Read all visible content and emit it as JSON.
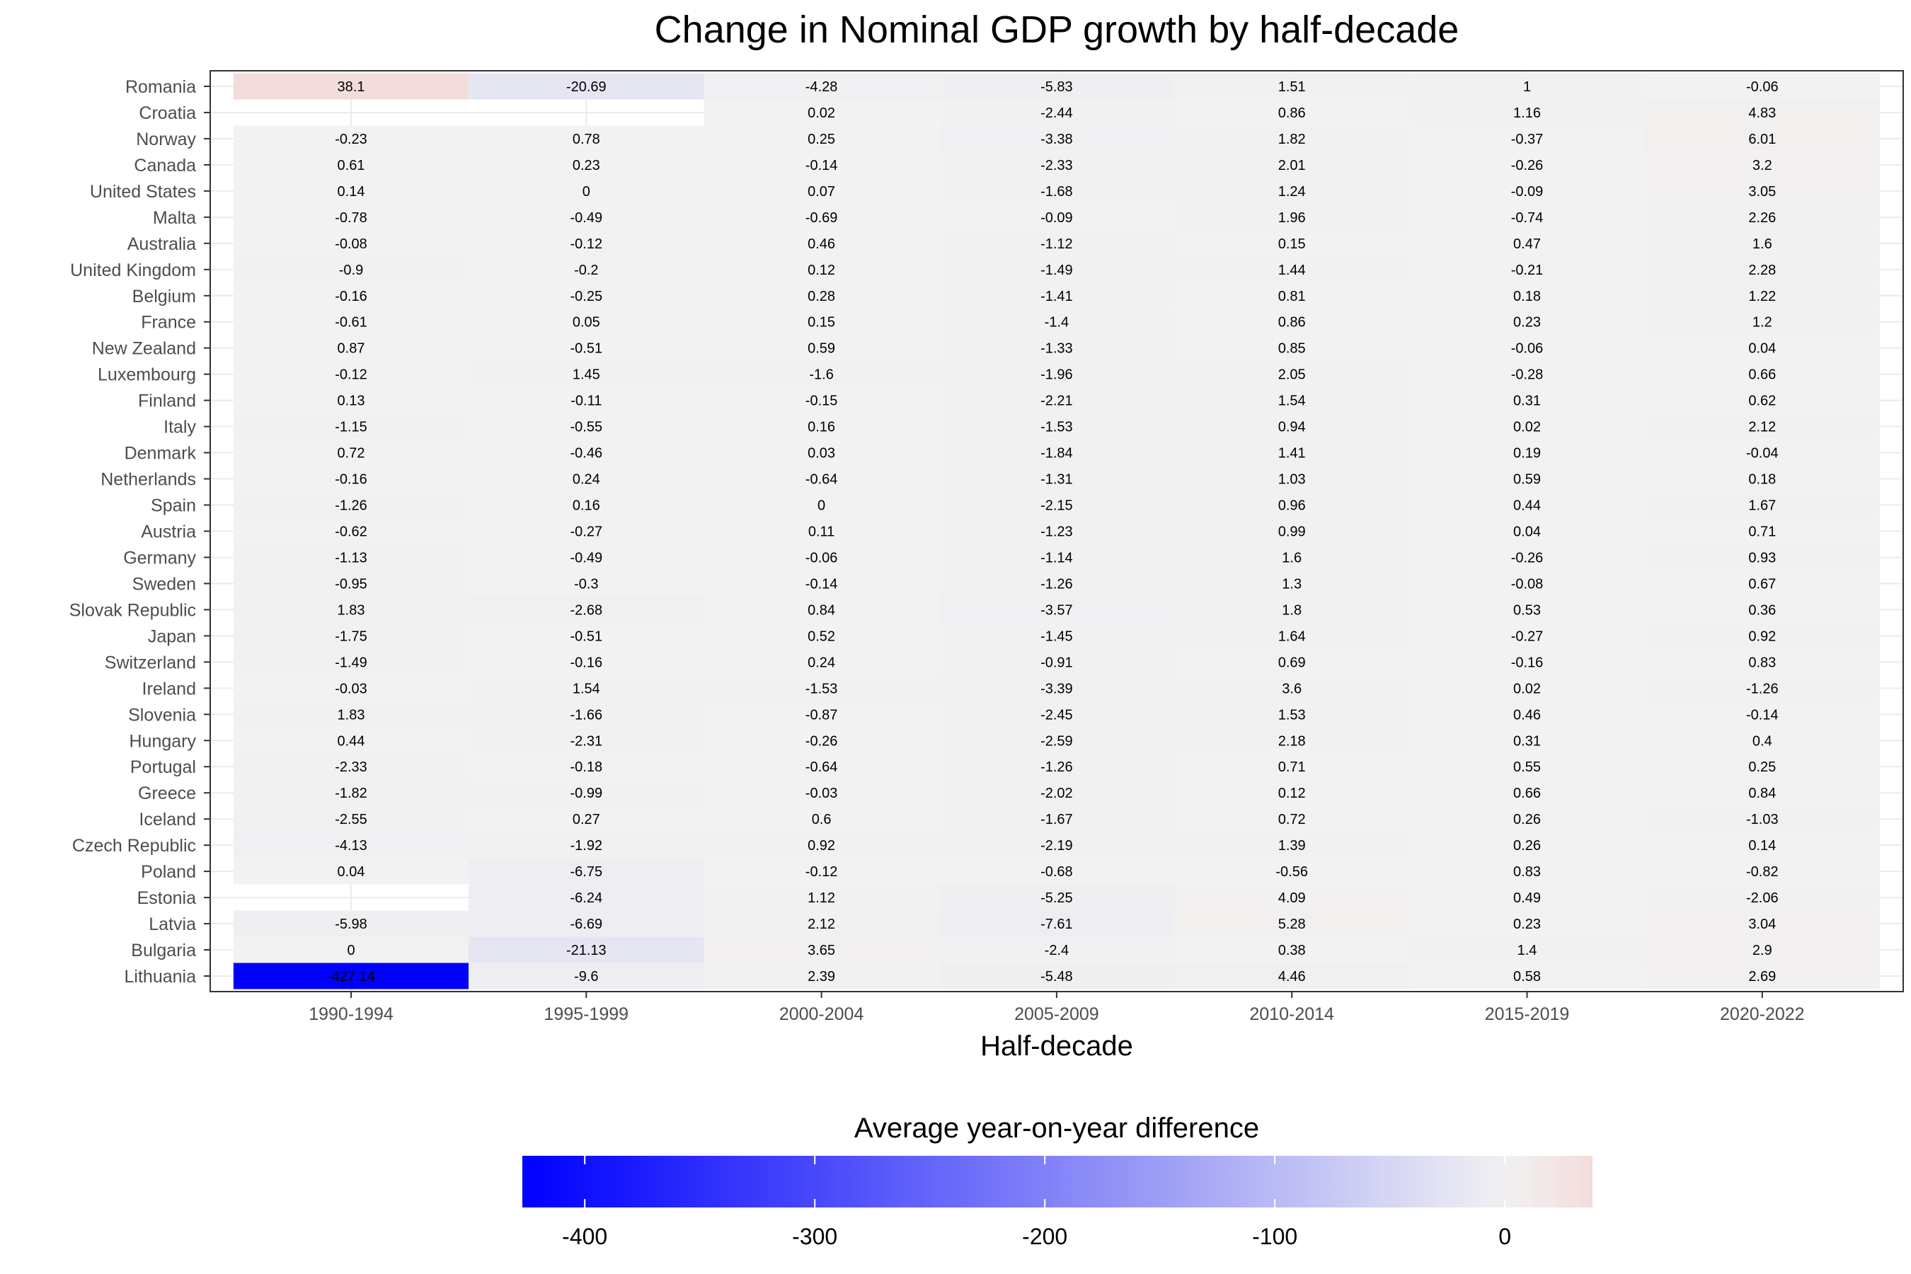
{
  "chart_data": {
    "type": "heatmap",
    "title": "Change in Nominal GDP growth by half-decade",
    "xlabel": "Half-decade",
    "ylabel": "",
    "x_categories": [
      "1990-1994",
      "1995-1999",
      "2000-2004",
      "2005-2009",
      "2010-2014",
      "2015-2019",
      "2020-2022"
    ],
    "y_categories": [
      "Romania",
      "Croatia",
      "Norway",
      "Canada",
      "United States",
      "Malta",
      "Australia",
      "United Kingdom",
      "Belgium",
      "France",
      "New Zealand",
      "Luxembourg",
      "Finland",
      "Italy",
      "Denmark",
      "Netherlands",
      "Spain",
      "Austria",
      "Germany",
      "Sweden",
      "Slovak Republic",
      "Japan",
      "Switzerland",
      "Ireland",
      "Slovenia",
      "Hungary",
      "Portugal",
      "Greece",
      "Iceland",
      "Czech Republic",
      "Poland",
      "Estonia",
      "Latvia",
      "Bulgaria",
      "Lithuania"
    ],
    "values": [
      [
        38.1,
        -20.69,
        -4.28,
        -5.83,
        1.51,
        1,
        -0.06
      ],
      [
        null,
        null,
        0.02,
        -2.44,
        0.86,
        1.16,
        4.83
      ],
      [
        -0.23,
        0.78,
        0.25,
        -3.38,
        1.82,
        -0.37,
        6.01
      ],
      [
        0.61,
        0.23,
        -0.14,
        -2.33,
        2.01,
        -0.26,
        3.2
      ],
      [
        0.14,
        0,
        0.07,
        -1.68,
        1.24,
        -0.09,
        3.05
      ],
      [
        -0.78,
        -0.49,
        -0.69,
        -0.09,
        1.96,
        -0.74,
        2.26
      ],
      [
        -0.08,
        -0.12,
        0.46,
        -1.12,
        0.15,
        0.47,
        1.6
      ],
      [
        -0.9,
        -0.2,
        0.12,
        -1.49,
        1.44,
        -0.21,
        2.28
      ],
      [
        -0.16,
        -0.25,
        0.28,
        -1.41,
        0.81,
        0.18,
        1.22
      ],
      [
        -0.61,
        0.05,
        0.15,
        -1.4,
        0.86,
        0.23,
        1.2
      ],
      [
        0.87,
        -0.51,
        0.59,
        -1.33,
        0.85,
        -0.06,
        0.04
      ],
      [
        -0.12,
        1.45,
        -1.6,
        -1.96,
        2.05,
        -0.28,
        0.66
      ],
      [
        0.13,
        -0.11,
        -0.15,
        -2.21,
        1.54,
        0.31,
        0.62
      ],
      [
        -1.15,
        -0.55,
        0.16,
        -1.53,
        0.94,
        0.02,
        2.12
      ],
      [
        0.72,
        -0.46,
        0.03,
        -1.84,
        1.41,
        0.19,
        -0.04
      ],
      [
        -0.16,
        0.24,
        -0.64,
        -1.31,
        1.03,
        0.59,
        0.18
      ],
      [
        -1.26,
        0.16,
        0,
        -2.15,
        0.96,
        0.44,
        1.67
      ],
      [
        -0.62,
        -0.27,
        0.11,
        -1.23,
        0.99,
        0.04,
        0.71
      ],
      [
        -1.13,
        -0.49,
        -0.06,
        -1.14,
        1.6,
        -0.26,
        0.93
      ],
      [
        -0.95,
        -0.3,
        -0.14,
        -1.26,
        1.3,
        -0.08,
        0.67
      ],
      [
        1.83,
        -2.68,
        0.84,
        -3.57,
        1.8,
        0.53,
        0.36
      ],
      [
        -1.75,
        -0.51,
        0.52,
        -1.45,
        1.64,
        -0.27,
        0.92
      ],
      [
        -1.49,
        -0.16,
        0.24,
        -0.91,
        0.69,
        -0.16,
        0.83
      ],
      [
        -0.03,
        1.54,
        -1.53,
        -3.39,
        3.6,
        0.02,
        -1.26
      ],
      [
        1.83,
        -1.66,
        -0.87,
        -2.45,
        1.53,
        0.46,
        -0.14
      ],
      [
        0.44,
        -2.31,
        -0.26,
        -2.59,
        2.18,
        0.31,
        0.4
      ],
      [
        -2.33,
        -0.18,
        -0.64,
        -1.26,
        0.71,
        0.55,
        0.25
      ],
      [
        -1.82,
        -0.99,
        -0.03,
        -2.02,
        0.12,
        0.66,
        0.84
      ],
      [
        -2.55,
        0.27,
        0.6,
        -1.67,
        0.72,
        0.26,
        -1.03
      ],
      [
        -4.13,
        -1.92,
        0.92,
        -2.19,
        1.39,
        0.26,
        0.14
      ],
      [
        0.04,
        -6.75,
        -0.12,
        -0.68,
        -0.56,
        0.83,
        -0.82
      ],
      [
        null,
        -6.24,
        1.12,
        -5.25,
        4.09,
        0.49,
        -2.06
      ],
      [
        -5.98,
        -6.69,
        2.12,
        -7.61,
        5.28,
        0.23,
        3.04
      ],
      [
        0,
        -21.13,
        3.65,
        -2.4,
        0.38,
        1.4,
        2.9
      ],
      [
        -427.14,
        -9.6,
        2.39,
        -5.48,
        4.46,
        0.58,
        2.69
      ]
    ],
    "value_labels": [
      [
        "38.1",
        "-20.69",
        "-4.28",
        "-5.83",
        "1.51",
        "1",
        "-0.06"
      ],
      [
        "",
        "",
        "0.02",
        "-2.44",
        "0.86",
        "1.16",
        "4.83"
      ],
      [
        "-0.23",
        "0.78",
        "0.25",
        "-3.38",
        "1.82",
        "-0.37",
        "6.01"
      ],
      [
        "0.61",
        "0.23",
        "-0.14",
        "-2.33",
        "2.01",
        "-0.26",
        "3.2"
      ],
      [
        "0.14",
        "0",
        "0.07",
        "-1.68",
        "1.24",
        "-0.09",
        "3.05"
      ],
      [
        "-0.78",
        "-0.49",
        "-0.69",
        "-0.09",
        "1.96",
        "-0.74",
        "2.26"
      ],
      [
        "-0.08",
        "-0.12",
        "0.46",
        "-1.12",
        "0.15",
        "0.47",
        "1.6"
      ],
      [
        "-0.9",
        "-0.2",
        "0.12",
        "-1.49",
        "1.44",
        "-0.21",
        "2.28"
      ],
      [
        "-0.16",
        "-0.25",
        "0.28",
        "-1.41",
        "0.81",
        "0.18",
        "1.22"
      ],
      [
        "-0.61",
        "0.05",
        "0.15",
        "-1.4",
        "0.86",
        "0.23",
        "1.2"
      ],
      [
        "0.87",
        "-0.51",
        "0.59",
        "-1.33",
        "0.85",
        "-0.06",
        "0.04"
      ],
      [
        "-0.12",
        "1.45",
        "-1.6",
        "-1.96",
        "2.05",
        "-0.28",
        "0.66"
      ],
      [
        "0.13",
        "-0.11",
        "-0.15",
        "-2.21",
        "1.54",
        "0.31",
        "0.62"
      ],
      [
        "-1.15",
        "-0.55",
        "0.16",
        "-1.53",
        "0.94",
        "0.02",
        "2.12"
      ],
      [
        "0.72",
        "-0.46",
        "0.03",
        "-1.84",
        "1.41",
        "0.19",
        "-0.04"
      ],
      [
        "-0.16",
        "0.24",
        "-0.64",
        "-1.31",
        "1.03",
        "0.59",
        "0.18"
      ],
      [
        "-1.26",
        "0.16",
        "0",
        "-2.15",
        "0.96",
        "0.44",
        "1.67"
      ],
      [
        "-0.62",
        "-0.27",
        "0.11",
        "-1.23",
        "0.99",
        "0.04",
        "0.71"
      ],
      [
        "-1.13",
        "-0.49",
        "-0.06",
        "-1.14",
        "1.6",
        "-0.26",
        "0.93"
      ],
      [
        "-0.95",
        "-0.3",
        "-0.14",
        "-1.26",
        "1.3",
        "-0.08",
        "0.67"
      ],
      [
        "1.83",
        "-2.68",
        "0.84",
        "-3.57",
        "1.8",
        "0.53",
        "0.36"
      ],
      [
        "-1.75",
        "-0.51",
        "0.52",
        "-1.45",
        "1.64",
        "-0.27",
        "0.92"
      ],
      [
        "-1.49",
        "-0.16",
        "0.24",
        "-0.91",
        "0.69",
        "-0.16",
        "0.83"
      ],
      [
        "-0.03",
        "1.54",
        "-1.53",
        "-3.39",
        "3.6",
        "0.02",
        "-1.26"
      ],
      [
        "1.83",
        "-1.66",
        "-0.87",
        "-2.45",
        "1.53",
        "0.46",
        "-0.14"
      ],
      [
        "0.44",
        "-2.31",
        "-0.26",
        "-2.59",
        "2.18",
        "0.31",
        "0.4"
      ],
      [
        "-2.33",
        "-0.18",
        "-0.64",
        "-1.26",
        "0.71",
        "0.55",
        "0.25"
      ],
      [
        "-1.82",
        "-0.99",
        "-0.03",
        "-2.02",
        "0.12",
        "0.66",
        "0.84"
      ],
      [
        "-2.55",
        "0.27",
        "0.6",
        "-1.67",
        "0.72",
        "0.26",
        "-1.03"
      ],
      [
        "-4.13",
        "-1.92",
        "0.92",
        "-2.19",
        "1.39",
        "0.26",
        "0.14"
      ],
      [
        "0.04",
        "-6.75",
        "-0.12",
        "-0.68",
        "-0.56",
        "0.83",
        "-0.82"
      ],
      [
        "",
        "-6.24",
        "1.12",
        "-5.25",
        "4.09",
        "0.49",
        "-2.06"
      ],
      [
        "-5.98",
        "-6.69",
        "2.12",
        "-7.61",
        "5.28",
        "0.23",
        "3.04"
      ],
      [
        "0",
        "-21.13",
        "3.65",
        "-2.4",
        "0.38",
        "1.4",
        "2.9"
      ],
      [
        "-427.14",
        "-9.6",
        "2.39",
        "-5.48",
        "4.46",
        "0.58",
        "2.69"
      ]
    ],
    "color_scale": {
      "type": "diverging",
      "low": "#0000ff",
      "mid": "#f2f2f2",
      "high": "#ff0000",
      "midpoint": 0,
      "range": [
        -427.14,
        38.1
      ],
      "title": "Average year-on-year difference",
      "ticks": [
        -400,
        -300,
        -200,
        -100,
        0
      ],
      "tick_labels": [
        "-400",
        "-300",
        "-200",
        "-100",
        "0"
      ]
    },
    "legend_position": "bottom",
    "grid": true,
    "background": "#ffffff",
    "gridline_color": "#ebebeb"
  }
}
